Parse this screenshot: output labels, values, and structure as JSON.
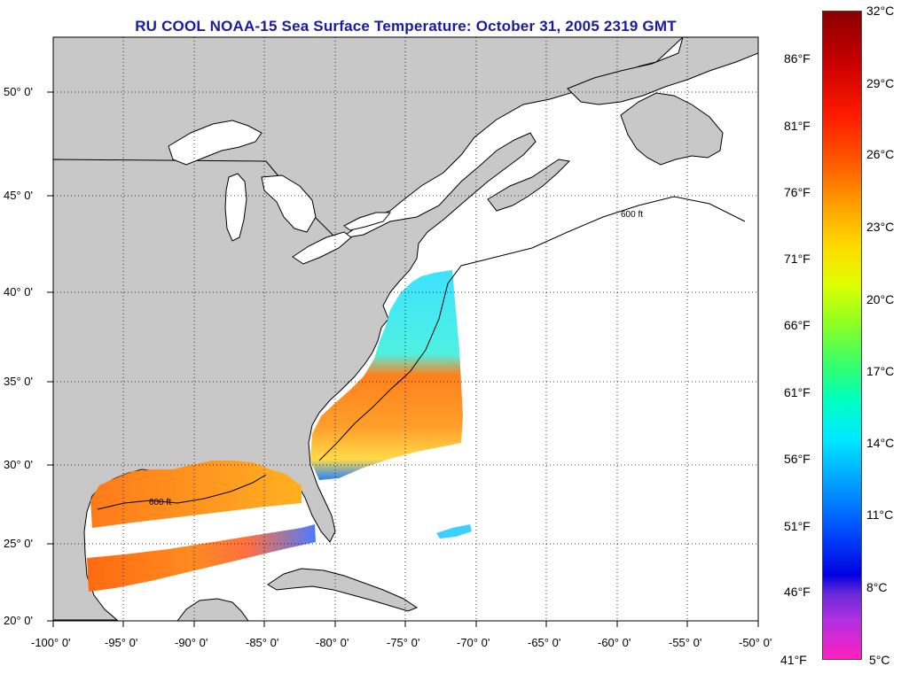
{
  "title": "RU COOL  NOAA-15  Sea Surface Temperature:  October 31, 2005 2319 GMT",
  "lat_labels": [
    "50° 0'",
    "45° 0'",
    "40° 0'",
    "35° 0'",
    "30° 0'",
    "25° 0'",
    "20° 0'"
  ],
  "lon_labels": [
    "-100° 0'",
    "-95° 0'",
    "-90° 0'",
    "-85° 0'",
    "-80° 0'",
    "-75° 0'",
    "-70° 0'",
    "-65° 0'",
    "-60° 0'",
    "-55° 0'",
    "-50° 0'"
  ],
  "contour_label": "600 ft",
  "colorbar": {
    "celsius": [
      "32°C",
      "29°C",
      "26°C",
      "23°C",
      "20°C",
      "17°C",
      "14°C",
      "11°C",
      "8°C",
      "5°C"
    ],
    "fahrenheit": [
      "86°F",
      "81°F",
      "76°F",
      "71°F",
      "66°F",
      "61°F",
      "56°F",
      "51°F",
      "46°F",
      "41°F"
    ]
  },
  "colors": {
    "land": "#c8c8c8",
    "ocean": "#ffffff",
    "title": "#1a1aa6"
  }
}
